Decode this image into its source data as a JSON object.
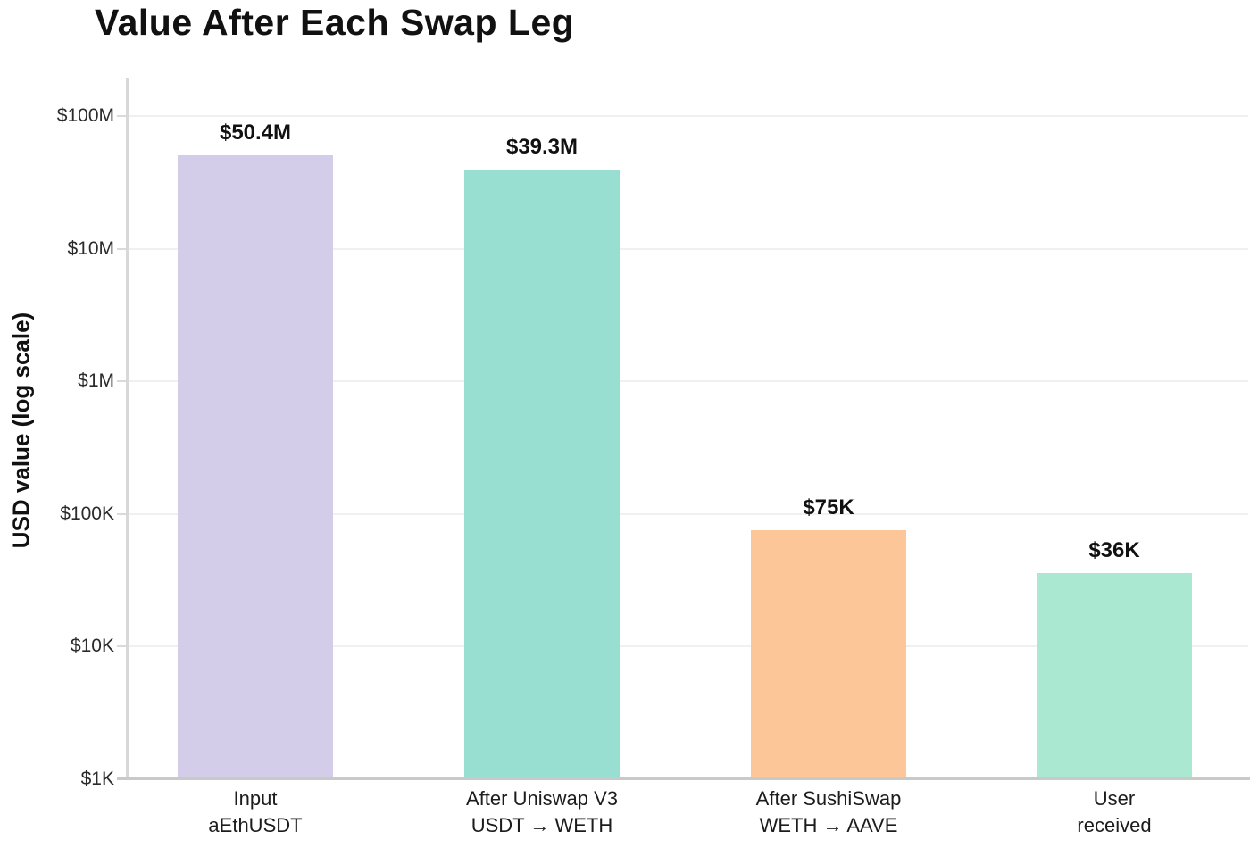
{
  "page": {
    "background": "#ffffff"
  },
  "chart_data": {
    "type": "bar",
    "title": "Value After Each Swap Leg",
    "xlabel": "",
    "ylabel": "USD value (log scale)",
    "scale": "log",
    "ylim": [
      1000,
      100000000
    ],
    "grid": true,
    "legend": false,
    "categories": [
      [
        "Input",
        "aEthUSDT"
      ],
      [
        "After Uniswap V3",
        "USDT → WETH"
      ],
      [
        "After SushiSwap",
        "WETH → AAVE"
      ],
      [
        "User",
        "received"
      ]
    ],
    "values": [
      50400000,
      39300000,
      75000,
      36000
    ],
    "value_labels": [
      "$50.4M",
      "$39.3M",
      "$75K",
      "$36K"
    ],
    "bar_colors": [
      "#d3cde9",
      "#98ded1",
      "#fdc699",
      "#abe8d2"
    ],
    "yticks": [
      {
        "value": 1000,
        "label": "$1K"
      },
      {
        "value": 10000,
        "label": "$10K"
      },
      {
        "value": 100000,
        "label": "$100K"
      },
      {
        "value": 1000000,
        "label": "$1M"
      },
      {
        "value": 10000000,
        "label": "$10M"
      },
      {
        "value": 100000000,
        "label": "$100M"
      }
    ],
    "axis_colors": {
      "gridline": "#f0f0f0",
      "axis_line": "#c9c9c9",
      "tick": "#dadada",
      "text": "#111111"
    }
  }
}
